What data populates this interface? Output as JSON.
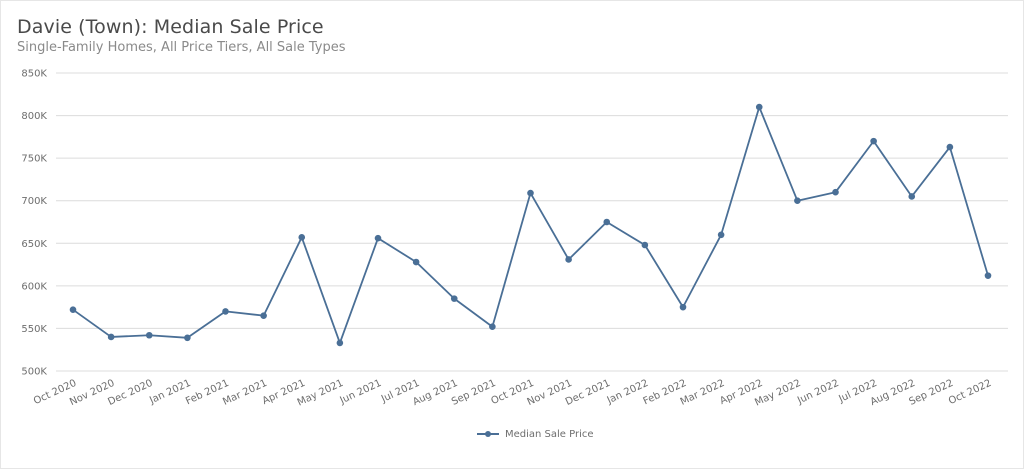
{
  "header": {
    "title": "Davie (Town): Median Sale Price",
    "subtitle": "Single-Family Homes, All Price Tiers, All Sale Types"
  },
  "legend": {
    "items": [
      {
        "label": "Median Sale Price",
        "color": "#4a6f96"
      }
    ]
  },
  "colors": {
    "series": "#4a6f96",
    "grid": "#dcdcdc",
    "tick_text": "#6e6e6e",
    "title": "#4a4a4a",
    "subtitle": "#8a8a8a"
  },
  "chart_data": {
    "type": "line",
    "title": "Davie (Town): Median Sale Price",
    "subtitle": "Single-Family Homes, All Price Tiers, All Sale Types",
    "xlabel": "",
    "ylabel": "",
    "ylim": [
      500000,
      850000
    ],
    "yticks": [
      500000,
      550000,
      600000,
      650000,
      700000,
      750000,
      800000,
      850000
    ],
    "ytick_labels": [
      "500K",
      "550K",
      "600K",
      "650K",
      "700K",
      "750K",
      "800K",
      "850K"
    ],
    "grid": true,
    "legend_position": "bottom",
    "categories": [
      "Oct 2020",
      "Nov 2020",
      "Dec 2020",
      "Jan 2021",
      "Feb 2021",
      "Mar 2021",
      "Apr 2021",
      "May 2021",
      "Jun 2021",
      "Jul 2021",
      "Aug 2021",
      "Sep 2021",
      "Oct 2021",
      "Nov 2021",
      "Dec 2021",
      "Jan 2022",
      "Feb 2022",
      "Mar 2022",
      "Apr 2022",
      "May 2022",
      "Jun 2022",
      "Jul 2022",
      "Aug 2022",
      "Sep 2022",
      "Oct 2022"
    ],
    "series": [
      {
        "name": "Median Sale Price",
        "values": [
          572000,
          540000,
          542000,
          539000,
          570000,
          565000,
          657000,
          533000,
          656000,
          628000,
          585000,
          552000,
          709000,
          631000,
          675000,
          648000,
          575000,
          660000,
          810000,
          700000,
          710000,
          770000,
          705000,
          763000,
          612000
        ]
      }
    ]
  }
}
